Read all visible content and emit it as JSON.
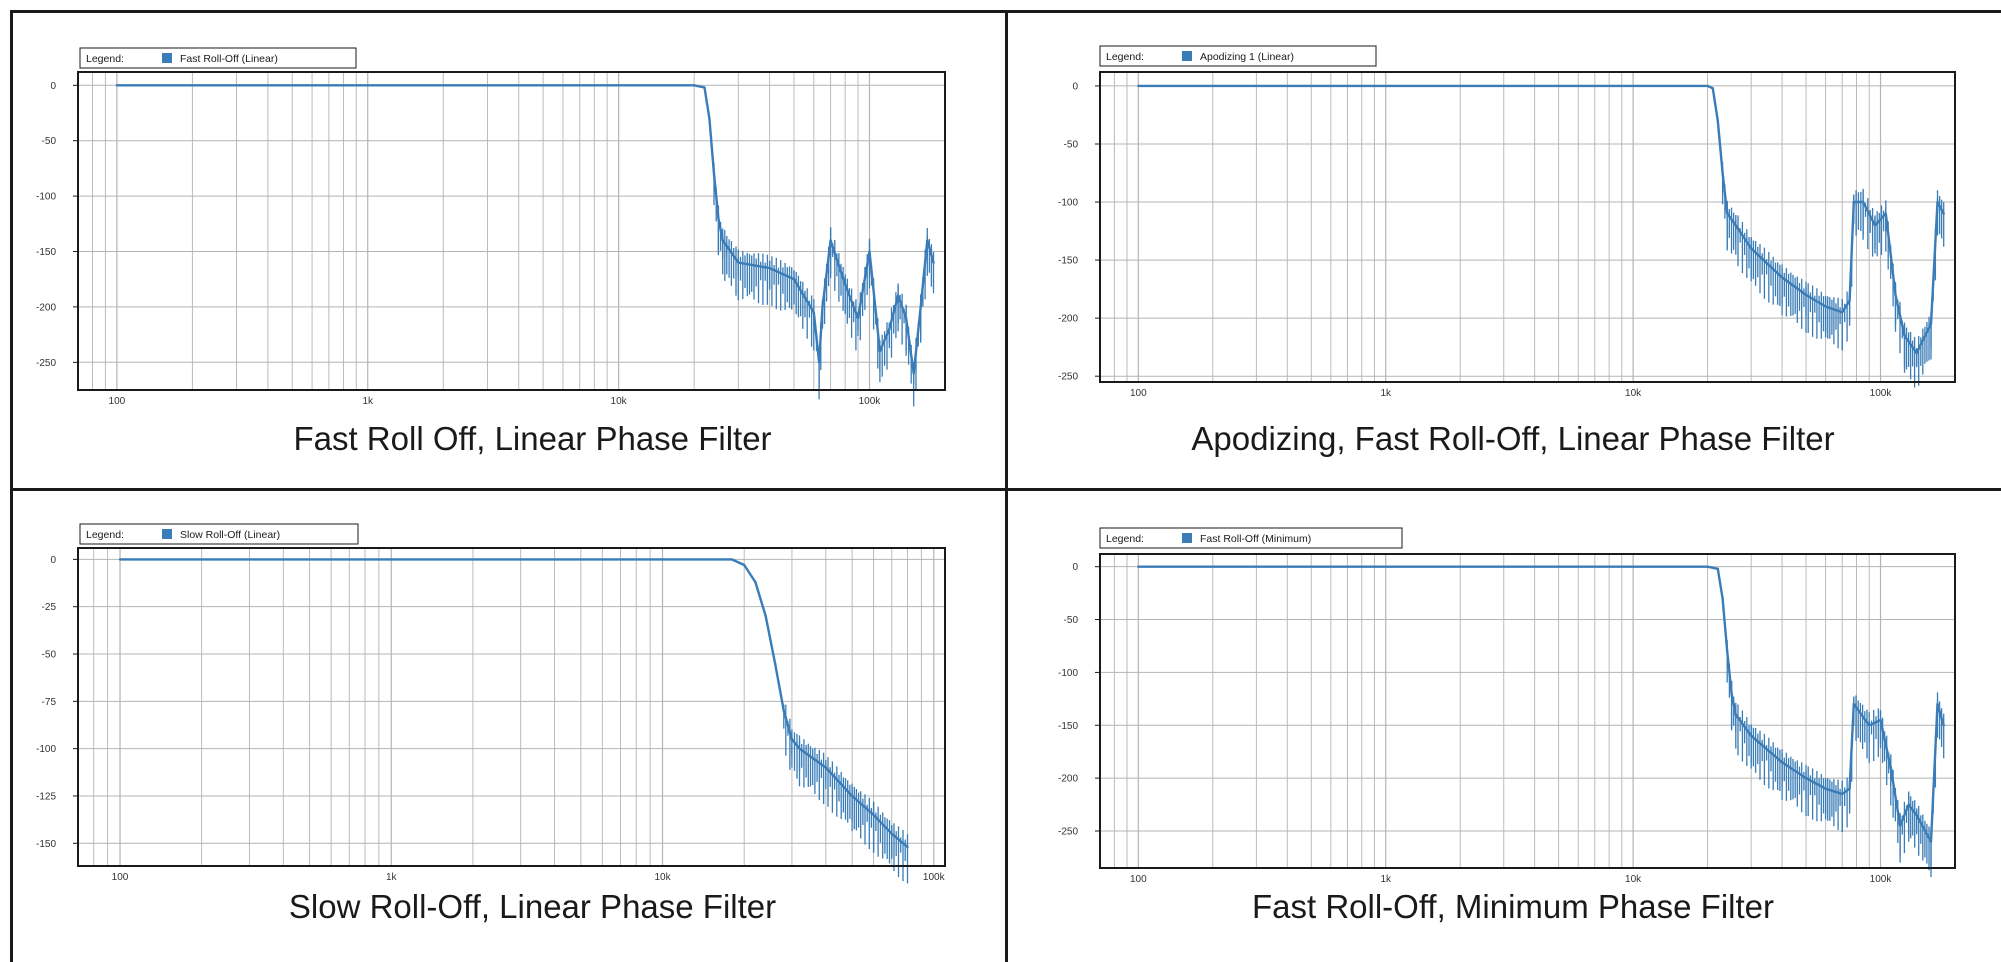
{
  "colors": {
    "trace": "#3a7cb7",
    "grid": "#b4b4b4",
    "frame": "#1a1a1a"
  },
  "legend_prefix": "Legend:",
  "chart_data": [
    {
      "type": "line",
      "caption": "Fast Roll Off, Linear Phase Filter",
      "legend": "Fast Roll-Off (Linear)",
      "x_scale": "log",
      "xlim": [
        70,
        200000
      ],
      "x_ticks": [
        {
          "value": 100,
          "label": "100"
        },
        {
          "value": 1000,
          "label": "1k"
        },
        {
          "value": 10000,
          "label": "10k"
        },
        {
          "value": 100000,
          "label": "100k"
        }
      ],
      "ylim": [
        -275,
        12
      ],
      "y_ticks": [
        0,
        -50,
        -100,
        -150,
        -200,
        -250
      ],
      "grid": true,
      "series": [
        {
          "x": [
            100,
            20000,
            22000,
            23000,
            24000,
            25000,
            26000,
            27000,
            30000,
            40000,
            50000,
            60000,
            63000,
            65000,
            70000,
            80000,
            90000,
            100000,
            110000,
            120000,
            130000,
            140000,
            150000,
            160000,
            170000,
            180000
          ],
          "y": [
            0,
            0,
            -2,
            -30,
            -80,
            -120,
            -140,
            -145,
            -160,
            -165,
            -175,
            -205,
            -250,
            -200,
            -140,
            -180,
            -210,
            -150,
            -240,
            -220,
            -190,
            -210,
            -260,
            -200,
            -140,
            -160
          ]
        }
      ]
    },
    {
      "type": "line",
      "caption": "Apodizing, Fast Roll-Off, Linear Phase Filter",
      "legend": "Apodizing 1 (Linear)",
      "x_scale": "log",
      "xlim": [
        70,
        200000
      ],
      "x_ticks": [
        {
          "value": 100,
          "label": "100"
        },
        {
          "value": 1000,
          "label": "1k"
        },
        {
          "value": 10000,
          "label": "10k"
        },
        {
          "value": 100000,
          "label": "100k"
        }
      ],
      "ylim": [
        -255,
        12
      ],
      "y_ticks": [
        0,
        -50,
        -100,
        -150,
        -200,
        -250
      ],
      "grid": true,
      "series": [
        {
          "x": [
            100,
            20000,
            21000,
            22000,
            23000,
            24000,
            26000,
            30000,
            40000,
            50000,
            60000,
            70000,
            75000,
            78000,
            85000,
            95000,
            105000,
            115000,
            125000,
            140000,
            160000,
            170000,
            180000
          ],
          "y": [
            0,
            0,
            -2,
            -30,
            -75,
            -110,
            -120,
            -140,
            -165,
            -180,
            -190,
            -195,
            -185,
            -100,
            -100,
            -120,
            -110,
            -180,
            -215,
            -230,
            -205,
            -100,
            -110
          ]
        }
      ]
    },
    {
      "type": "line",
      "caption": "Slow Roll-Off, Linear Phase Filter",
      "legend": "Slow Roll-Off (Linear)",
      "x_scale": "log",
      "xlim": [
        70,
        110000
      ],
      "x_ticks": [
        {
          "value": 100,
          "label": "100"
        },
        {
          "value": 1000,
          "label": "1k"
        },
        {
          "value": 10000,
          "label": "10k"
        },
        {
          "value": 100000,
          "label": "100k"
        }
      ],
      "ylim": [
        -162,
        6
      ],
      "y_ticks": [
        0,
        -25,
        -50,
        -75,
        -100,
        -125,
        -150
      ],
      "grid": true,
      "series": [
        {
          "x": [
            100,
            18000,
            20000,
            22000,
            24000,
            26000,
            28000,
            30000,
            32000,
            40000,
            50000,
            60000,
            70000,
            80000
          ],
          "y": [
            0,
            0,
            -3,
            -12,
            -30,
            -55,
            -80,
            -95,
            -100,
            -110,
            -125,
            -135,
            -145,
            -152
          ]
        }
      ]
    },
    {
      "type": "line",
      "caption": "Fast Roll-Off, Minimum Phase Filter",
      "legend": "Fast Roll-Off (Minimum)",
      "x_scale": "log",
      "xlim": [
        70,
        200000
      ],
      "x_ticks": [
        {
          "value": 100,
          "label": "100"
        },
        {
          "value": 1000,
          "label": "1k"
        },
        {
          "value": 10000,
          "label": "10k"
        },
        {
          "value": 100000,
          "label": "100k"
        }
      ],
      "ylim": [
        -285,
        12
      ],
      "y_ticks": [
        0,
        -50,
        -100,
        -150,
        -200,
        -250
      ],
      "grid": true,
      "series": [
        {
          "x": [
            100,
            20000,
            22000,
            23000,
            24000,
            25000,
            26000,
            30000,
            40000,
            50000,
            60000,
            70000,
            75000,
            78000,
            90000,
            100000,
            110000,
            120000,
            130000,
            140000,
            160000,
            170000,
            180000
          ],
          "y": [
            0,
            0,
            -2,
            -30,
            -80,
            -120,
            -140,
            -160,
            -185,
            -200,
            -210,
            -215,
            -210,
            -130,
            -150,
            -145,
            -190,
            -245,
            -225,
            -235,
            -260,
            -130,
            -150
          ]
        }
      ]
    }
  ]
}
